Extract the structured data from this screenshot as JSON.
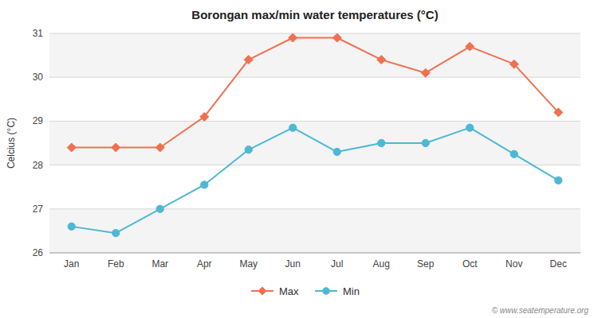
{
  "chart_data": {
    "type": "line",
    "title": "Borongan max/min water temperatures (°C)",
    "y_label": "Celcius (°C)",
    "categories": [
      "Jan",
      "Feb",
      "Mar",
      "Apr",
      "May",
      "Jun",
      "Jul",
      "Aug",
      "Sep",
      "Oct",
      "Nov",
      "Dec"
    ],
    "series": [
      {
        "name": "Max",
        "color": "#f07050",
        "marker": "diamond",
        "values": [
          28.4,
          28.4,
          28.4,
          29.1,
          30.4,
          30.9,
          30.9,
          30.4,
          30.1,
          30.7,
          30.3,
          29.2
        ]
      },
      {
        "name": "Min",
        "color": "#4db8d4",
        "marker": "circle",
        "values": [
          26.6,
          26.45,
          27.0,
          27.55,
          28.35,
          28.85,
          28.3,
          28.5,
          28.5,
          28.85,
          28.25,
          27.65
        ]
      }
    ],
    "ylim": [
      26,
      31
    ],
    "yticks": [
      26,
      27,
      28,
      29,
      30,
      31
    ],
    "grid": true,
    "legend": "bottom",
    "annotations": [
      "© www.seatemperature.org"
    ]
  }
}
